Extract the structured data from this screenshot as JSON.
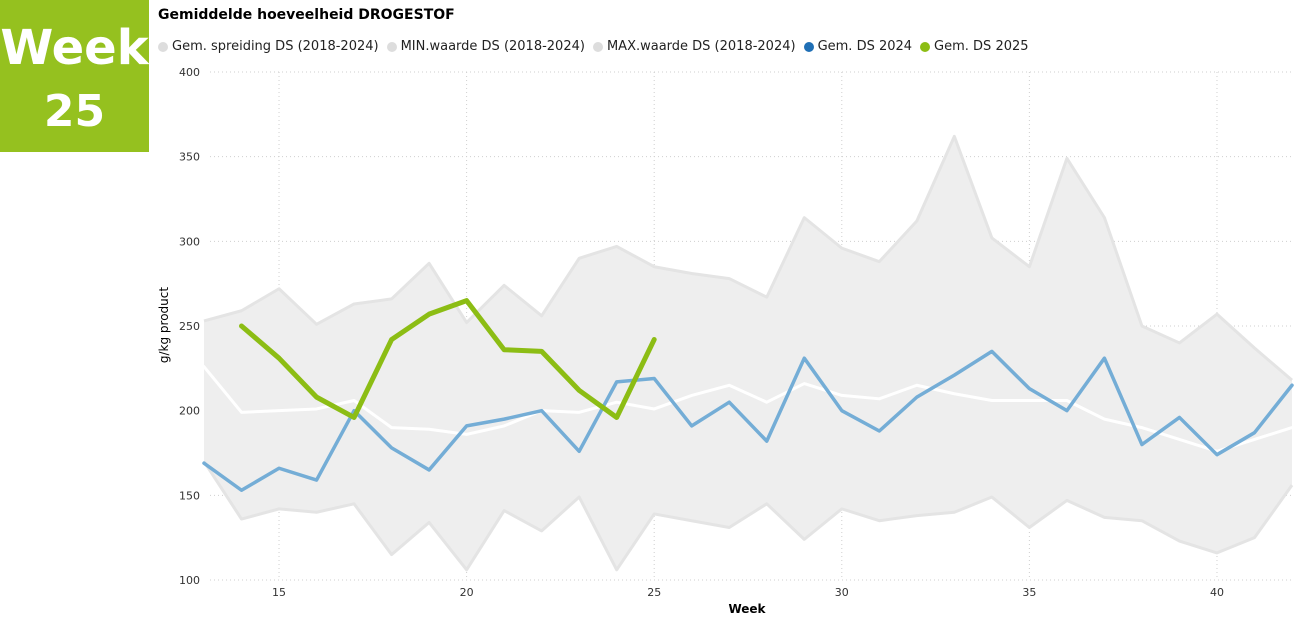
{
  "badge": {
    "line1": "Week",
    "line2": "25",
    "color": "#95c11f"
  },
  "chart_data": {
    "type": "line",
    "title": "Gemiddelde hoeveelheid DROGESTOF",
    "xlabel": "Week",
    "ylabel": "g/kg product",
    "xlim": [
      13,
      42
    ],
    "ylim": [
      100,
      400
    ],
    "x_ticks": [
      15,
      20,
      25,
      30,
      35,
      40
    ],
    "y_ticks": [
      100,
      150,
      200,
      250,
      300,
      350,
      400
    ],
    "grid": true,
    "legend_position": "top",
    "legend": [
      {
        "label": "Gem. spreiding DS (2018-2024)",
        "color": "#dddddd"
      },
      {
        "label": "MIN.waarde DS (2018-2024)",
        "color": "#dddddd"
      },
      {
        "label": "MAX.waarde DS (2018-2024)",
        "color": "#dddddd"
      },
      {
        "label": "Gem. DS 2024",
        "color": "#1f6fb5"
      },
      {
        "label": "Gem. DS 2025",
        "color": "#8cbd14"
      }
    ],
    "band": {
      "name": "Gem. spreiding DS (2018-2024)",
      "x": [
        13,
        14,
        15,
        16,
        17,
        18,
        19,
        20,
        21,
        22,
        23,
        24,
        25,
        26,
        27,
        28,
        29,
        30,
        31,
        32,
        33,
        34,
        35,
        36,
        37,
        38,
        39,
        40,
        41,
        42
      ],
      "min": [
        170,
        136,
        142,
        140,
        145,
        115,
        134,
        106,
        141,
        129,
        149,
        106,
        139,
        135,
        131,
        145,
        124,
        142,
        135,
        138,
        140,
        149,
        131,
        147,
        137,
        135,
        123,
        116,
        125,
        156
      ],
      "max": [
        253,
        259,
        272,
        251,
        263,
        266,
        287,
        252,
        274,
        256,
        290,
        297,
        285,
        281,
        278,
        267,
        314,
        296,
        288,
        312,
        362,
        302,
        285,
        349,
        314,
        250,
        240,
        257,
        237,
        218
      ],
      "fill": "#eeeeee",
      "edge": "#e4e4e4"
    },
    "series": [
      {
        "name": "Gem. spreiding DS (2018-2024)",
        "color": "#ffffff",
        "x": [
          13,
          14,
          15,
          16,
          17,
          18,
          19,
          20,
          21,
          22,
          23,
          24,
          25,
          26,
          27,
          28,
          29,
          30,
          31,
          32,
          33,
          34,
          35,
          36,
          37,
          38,
          39,
          40,
          41,
          42
        ],
        "values": [
          226,
          199,
          200,
          201,
          206,
          190,
          189,
          186,
          191,
          200,
          199,
          205,
          201,
          209,
          215,
          205,
          216,
          209,
          207,
          215,
          210,
          206,
          206,
          206,
          195,
          190,
          183,
          176,
          183,
          190
        ]
      },
      {
        "name": "Gem. DS 2024",
        "color": "#74add6",
        "x": [
          13,
          14,
          15,
          16,
          17,
          18,
          19,
          20,
          21,
          22,
          23,
          24,
          25,
          26,
          27,
          28,
          29,
          30,
          31,
          32,
          33,
          34,
          35,
          36,
          37,
          38,
          39,
          40,
          41,
          42
        ],
        "values": [
          169,
          153,
          166,
          159,
          200,
          178,
          165,
          191,
          195,
          200,
          176,
          217,
          219,
          191,
          205,
          182,
          231,
          200,
          188,
          208,
          221,
          235,
          213,
          200,
          231,
          180,
          196,
          174,
          187,
          215
        ]
      },
      {
        "name": "Gem. DS 2025",
        "color": "#8cbd14",
        "x": [
          14,
          15,
          16,
          17,
          18,
          19,
          20,
          21,
          22,
          23,
          24,
          25
        ],
        "values": [
          250,
          231,
          208,
          196,
          242,
          257,
          265,
          236,
          235,
          212,
          196,
          242
        ]
      }
    ]
  }
}
